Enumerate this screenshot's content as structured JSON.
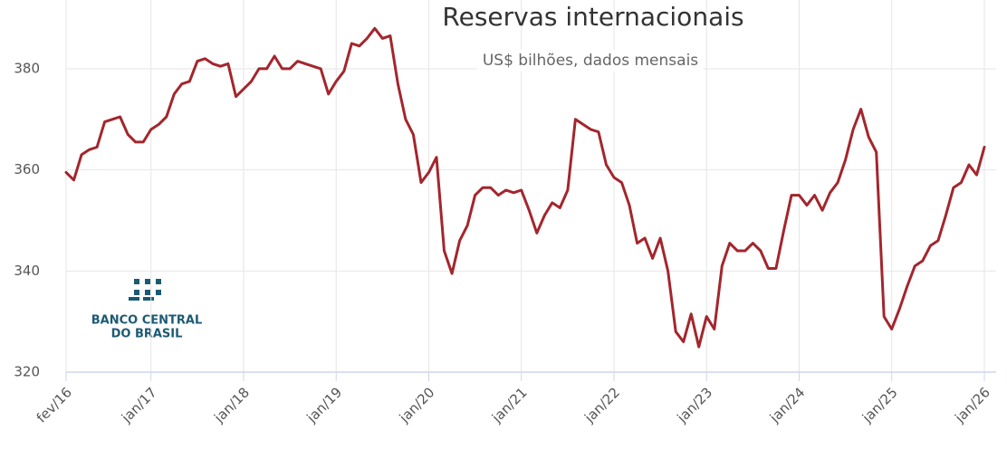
{
  "chart_data": {
    "type": "line",
    "title": "Reservas internacionais",
    "subtitle": "US$ bilhões, dados mensais",
    "logo": [
      "BANCO CENTRAL",
      "DO BRASIL"
    ],
    "categories": [
      "fev/16",
      null,
      null,
      null,
      null,
      null,
      null,
      null,
      null,
      null,
      null,
      "jan/17",
      null,
      null,
      null,
      null,
      null,
      null,
      null,
      null,
      null,
      null,
      null,
      "jan/18",
      null,
      null,
      null,
      null,
      null,
      null,
      null,
      null,
      null,
      null,
      null,
      "jan/19",
      null,
      null,
      null,
      null,
      null,
      null,
      null,
      null,
      null,
      null,
      null,
      "jan/20",
      null,
      null,
      null,
      null,
      null,
      null,
      null,
      null,
      null,
      null,
      null,
      "jan/21",
      null,
      null,
      null,
      null,
      null,
      null,
      null,
      null,
      null,
      null,
      null,
      "jan/22",
      null,
      null,
      null,
      null,
      null,
      null,
      null,
      null,
      null,
      null,
      null,
      "jan/23",
      null,
      null,
      null,
      null,
      null,
      null,
      null,
      null,
      null,
      null,
      null,
      "jan/24",
      null,
      null,
      null,
      null,
      null,
      null,
      null,
      null,
      null,
      null,
      null,
      "jan/25",
      null,
      null,
      null,
      null,
      null,
      null,
      null,
      null,
      null,
      null,
      null,
      "jan/26"
    ],
    "series": [
      {
        "name": "Reservas internacionais",
        "color": "#a3262d",
        "values": [
          359.5,
          358,
          363,
          364,
          364.5,
          369.5,
          370,
          370.5,
          367,
          365.5,
          365.5,
          368,
          369,
          370.5,
          375,
          377,
          377.5,
          381.5,
          382,
          381,
          380.5,
          381,
          374.5,
          376,
          377.5,
          380,
          380,
          382.5,
          380,
          380,
          381.5,
          381,
          380.5,
          380,
          375,
          377.5,
          379.5,
          385,
          384.5,
          386,
          388,
          386,
          386.5,
          377,
          370,
          367,
          357.5,
          359.5,
          362.5,
          344,
          339.5,
          346,
          349,
          355,
          356.5,
          356.5,
          355,
          356,
          355.5,
          356,
          352,
          347.5,
          351,
          353.5,
          352.5,
          356,
          370,
          369,
          368,
          367.5,
          361,
          358.5,
          357.5,
          353,
          345.5,
          346.5,
          342.5,
          346.5,
          340,
          328,
          326,
          331.5,
          325,
          331,
          328.5,
          341,
          345.5,
          344,
          344,
          345.5,
          344,
          340.5,
          340.5,
          348,
          355,
          355,
          353,
          355,
          352,
          355.5,
          357.5,
          362,
          368,
          372,
          366.5,
          363.5,
          331,
          328.5,
          332.5,
          337,
          341,
          342,
          345,
          346,
          351,
          356.5,
          357.5,
          361,
          359,
          364.5
        ]
      }
    ],
    "ylim": [
      320,
      393.6
    ],
    "yticks": [
      320,
      340,
      360,
      380
    ],
    "grid": true
  }
}
